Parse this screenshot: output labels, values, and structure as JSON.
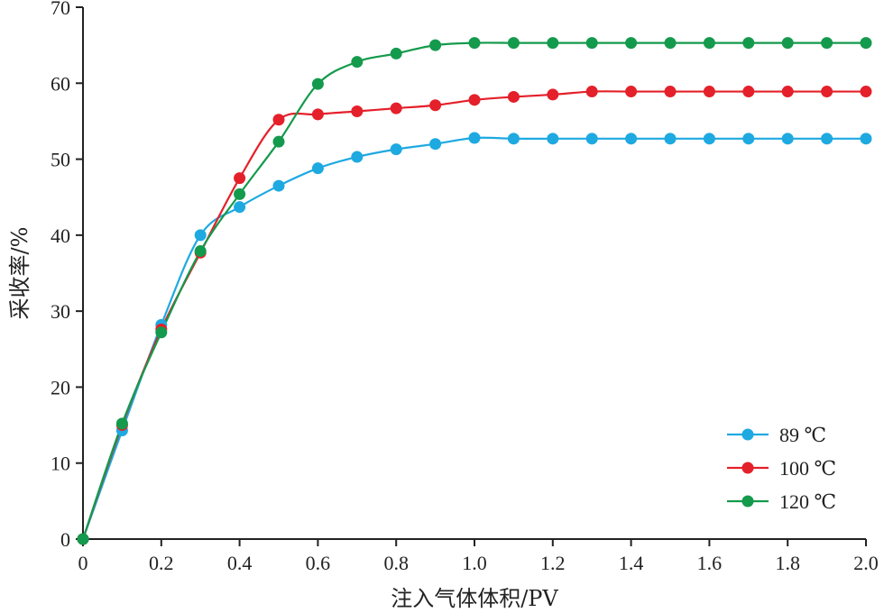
{
  "chart_data": {
    "type": "line",
    "title": "",
    "xlabel": "注入气体体积/PV",
    "ylabel": "采收率/%",
    "xlim": [
      0,
      2.0
    ],
    "ylim": [
      0,
      70
    ],
    "x_ticks": [
      "0",
      "0.2",
      "0.4",
      "0.6",
      "0.8",
      "1.0",
      "1.2",
      "1.4",
      "1.6",
      "1.8",
      "2.0"
    ],
    "y_ticks": [
      "0",
      "10",
      "20",
      "30",
      "40",
      "50",
      "60",
      "70"
    ],
    "grid": false,
    "legend_position": "bottom-right",
    "series": [
      {
        "name": "89 ℃",
        "color": "#1ea9e1",
        "points": [
          [
            0,
            0
          ],
          [
            0.1,
            14.3
          ],
          [
            0.2,
            28.2
          ],
          [
            0.3,
            40.0
          ],
          [
            0.4,
            43.7
          ],
          [
            0.5,
            46.5
          ],
          [
            0.6,
            48.8
          ],
          [
            0.7,
            50.3
          ],
          [
            0.8,
            51.3
          ],
          [
            0.9,
            52.0
          ],
          [
            1.0,
            52.8
          ],
          [
            1.1,
            52.7
          ],
          [
            1.2,
            52.7
          ],
          [
            1.3,
            52.7
          ],
          [
            1.4,
            52.7
          ],
          [
            1.5,
            52.7
          ],
          [
            1.6,
            52.7
          ],
          [
            1.7,
            52.7
          ],
          [
            1.8,
            52.7
          ],
          [
            1.9,
            52.7
          ],
          [
            2.0,
            52.7
          ]
        ]
      },
      {
        "name": "100 ℃",
        "color": "#e4202a",
        "points": [
          [
            0,
            0
          ],
          [
            0.1,
            15.0
          ],
          [
            0.2,
            27.6
          ],
          [
            0.3,
            37.7
          ],
          [
            0.4,
            47.5
          ],
          [
            0.5,
            55.2
          ],
          [
            0.6,
            55.9
          ],
          [
            0.7,
            56.3
          ],
          [
            0.8,
            56.7
          ],
          [
            0.9,
            57.1
          ],
          [
            1.0,
            57.8
          ],
          [
            1.1,
            58.2
          ],
          [
            1.2,
            58.5
          ],
          [
            1.3,
            58.9
          ],
          [
            1.4,
            58.9
          ],
          [
            1.5,
            58.9
          ],
          [
            1.6,
            58.9
          ],
          [
            1.7,
            58.9
          ],
          [
            1.8,
            58.9
          ],
          [
            1.9,
            58.9
          ],
          [
            2.0,
            58.9
          ]
        ]
      },
      {
        "name": "120 ℃",
        "color": "#149a4c",
        "points": [
          [
            0,
            0
          ],
          [
            0.1,
            15.2
          ],
          [
            0.2,
            27.2
          ],
          [
            0.3,
            37.9
          ],
          [
            0.4,
            45.4
          ],
          [
            0.5,
            52.3
          ],
          [
            0.6,
            59.9
          ],
          [
            0.7,
            62.8
          ],
          [
            0.8,
            63.9
          ],
          [
            0.9,
            65.0
          ],
          [
            1.0,
            65.3
          ],
          [
            1.1,
            65.3
          ],
          [
            1.2,
            65.3
          ],
          [
            1.3,
            65.3
          ],
          [
            1.4,
            65.3
          ],
          [
            1.5,
            65.3
          ],
          [
            1.6,
            65.3
          ],
          [
            1.7,
            65.3
          ],
          [
            1.8,
            65.3
          ],
          [
            1.9,
            65.3
          ],
          [
            2.0,
            65.3
          ]
        ]
      }
    ]
  }
}
